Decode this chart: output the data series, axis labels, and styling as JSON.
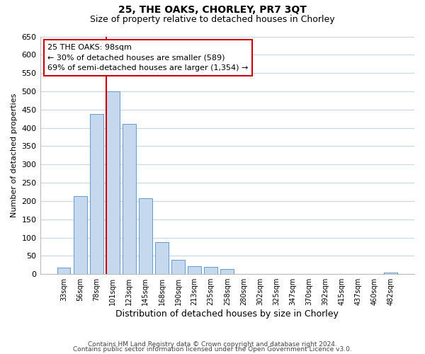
{
  "title": "25, THE OAKS, CHORLEY, PR7 3QT",
  "subtitle": "Size of property relative to detached houses in Chorley",
  "xlabel": "Distribution of detached houses by size in Chorley",
  "ylabel": "Number of detached properties",
  "bar_labels": [
    "33sqm",
    "56sqm",
    "78sqm",
    "101sqm",
    "123sqm",
    "145sqm",
    "168sqm",
    "190sqm",
    "213sqm",
    "235sqm",
    "258sqm",
    "280sqm",
    "302sqm",
    "325sqm",
    "347sqm",
    "370sqm",
    "392sqm",
    "415sqm",
    "437sqm",
    "460sqm",
    "482sqm"
  ],
  "bar_values": [
    18,
    213,
    438,
    500,
    410,
    207,
    88,
    40,
    22,
    19,
    13,
    0,
    0,
    0,
    0,
    0,
    0,
    0,
    0,
    0,
    4
  ],
  "bar_color": "#c5d8ed",
  "bar_edge_color": "#6699cc",
  "ylim": [
    0,
    650
  ],
  "yticks": [
    0,
    50,
    100,
    150,
    200,
    250,
    300,
    350,
    400,
    450,
    500,
    550,
    600,
    650
  ],
  "marker_bar_index": 3,
  "marker_color": "#cc0000",
  "annotation_line1": "25 THE OAKS: 98sqm",
  "annotation_line2": "← 30% of detached houses are smaller (589)",
  "annotation_line3": "69% of semi-detached houses are larger (1,354) →",
  "footer1": "Contains HM Land Registry data © Crown copyright and database right 2024.",
  "footer2": "Contains public sector information licensed under the Open Government Licence v3.0.",
  "bg_color": "#ffffff",
  "grid_color": "#c8d4e8",
  "annotation_box_facecolor": "#ffffff",
  "annotation_box_edgecolor": "#cc0000",
  "title_fontsize": 10,
  "subtitle_fontsize": 9,
  "ylabel_fontsize": 8,
  "xlabel_fontsize": 9,
  "tick_fontsize": 8,
  "annot_fontsize": 8,
  "footer_fontsize": 6.5
}
